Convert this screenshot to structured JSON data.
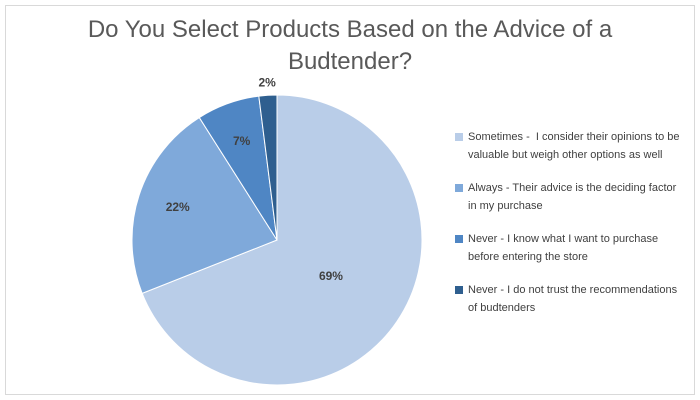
{
  "chart_data": {
    "type": "pie",
    "title": "Do You Select Products Based on the Advice of a Budtender?",
    "categories": [
      "Sometimes -  I consider their opinions to be valuable but weigh other options as well",
      "Always - Their advice is the deciding factor in my purchase",
      "Never - I know what I want to purchase before entering the store",
      "Never - I do not trust the recommendations of budtenders"
    ],
    "values": [
      69,
      22,
      7,
      2
    ],
    "value_labels": [
      "69%",
      "22%",
      "7%",
      "2%"
    ],
    "colors": [
      "#b9cde8",
      "#7fa9da",
      "#4f86c4",
      "#2f5f8f"
    ],
    "legend": "right"
  }
}
